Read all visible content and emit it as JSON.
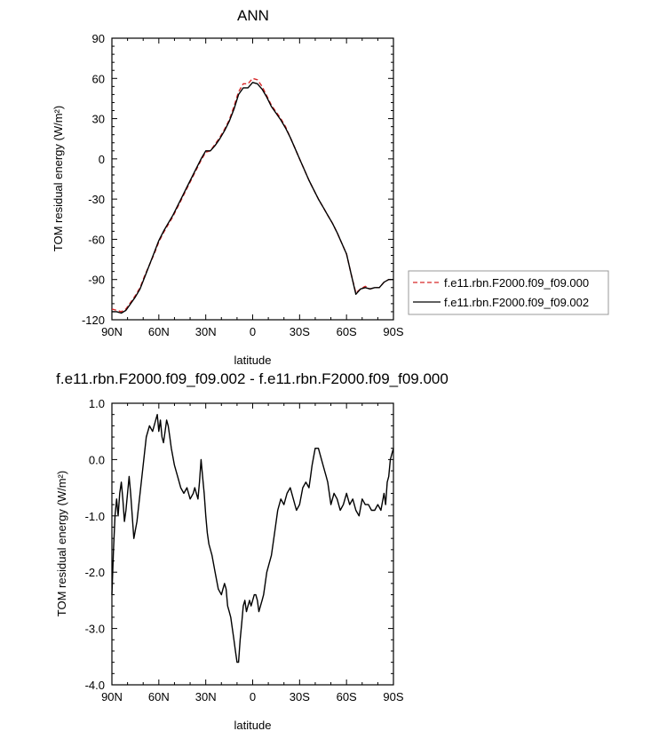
{
  "chart_data": [
    {
      "type": "line",
      "title": "ANN",
      "xlabel": "latitude",
      "ylabel": "TOM residual energy (W/m²)",
      "xlim": [
        90,
        -90
      ],
      "ylim": [
        -120,
        90
      ],
      "xticks": [
        90,
        60,
        30,
        0,
        -30,
        -60,
        -90
      ],
      "xtick_labels": [
        "90N",
        "60N",
        "30N",
        "0",
        "30S",
        "60S",
        "90S"
      ],
      "yticks": [
        90,
        60,
        30,
        0,
        -30,
        -60,
        -90,
        -120
      ],
      "ytick_labels": [
        "90",
        "60",
        "30",
        "0",
        "-30",
        "-60",
        "-90",
        "-120"
      ],
      "legend_position": "right",
      "series": [
        {
          "name": "f.e11.rbn.F2000.f09_f09.000",
          "color": "#d62728",
          "dash": "dashed",
          "x": [
            90,
            87,
            84,
            81,
            78,
            75,
            72,
            69,
            66,
            63,
            60,
            57,
            54,
            51,
            48,
            45,
            42,
            39,
            36,
            33,
            30,
            27,
            24,
            21,
            18,
            15,
            12,
            9,
            6,
            3,
            0,
            -3,
            -6,
            -9,
            -12,
            -15,
            -18,
            -21,
            -24,
            -27,
            -30,
            -33,
            -36,
            -39,
            -42,
            -45,
            -48,
            -51,
            -54,
            -57,
            -60,
            -63,
            -66,
            -69,
            -72,
            -75,
            -78,
            -81,
            -84,
            -87,
            -90
          ],
          "values": [
            -112,
            -113,
            -114,
            -112,
            -107,
            -102,
            -96,
            -87,
            -79,
            -71,
            -62,
            -55,
            -49,
            -43,
            -36,
            -29,
            -22,
            -15,
            -8,
            -1,
            5,
            6,
            11,
            16,
            22,
            29,
            39,
            50,
            56,
            56,
            60,
            59,
            54,
            47,
            40,
            35,
            30,
            24,
            16,
            8,
            0,
            -8,
            -16,
            -23,
            -30,
            -36,
            -42,
            -48,
            -55,
            -63,
            -71,
            -86,
            -100,
            -97,
            -95,
            -97,
            -96,
            -96,
            -92,
            -90,
            -90
          ]
        },
        {
          "name": "f.e11.rbn.F2000.f09_f09.002",
          "color": "#000000",
          "dash": "solid",
          "x": [
            90,
            87,
            84,
            81,
            78,
            75,
            72,
            69,
            66,
            63,
            60,
            57,
            54,
            51,
            48,
            45,
            42,
            39,
            36,
            33,
            30,
            27,
            24,
            21,
            18,
            15,
            12,
            9,
            6,
            3,
            0,
            -3,
            -6,
            -9,
            -12,
            -15,
            -18,
            -21,
            -24,
            -27,
            -30,
            -33,
            -36,
            -39,
            -42,
            -45,
            -48,
            -51,
            -54,
            -57,
            -60,
            -63,
            -66,
            -69,
            -72,
            -75,
            -78,
            -81,
            -84,
            -87,
            -90
          ],
          "values": [
            -114,
            -114,
            -115,
            -113,
            -108,
            -103,
            -97,
            -88,
            -79,
            -70,
            -61,
            -54,
            -48,
            -42,
            -35,
            -28,
            -21,
            -14,
            -7,
            0,
            6,
            6,
            10,
            15,
            21,
            28,
            37,
            48,
            53,
            53,
            57,
            56,
            52,
            46,
            39,
            34,
            29,
            23,
            16,
            8,
            0,
            -8,
            -16,
            -23,
            -30,
            -36,
            -42,
            -48,
            -55,
            -63,
            -71,
            -86,
            -101,
            -97,
            -96,
            -97,
            -96,
            -96,
            -92,
            -90,
            -90
          ]
        }
      ]
    },
    {
      "type": "line",
      "title": "f.e11.rbn.F2000.f09_f09.002 - f.e11.rbn.F2000.f09_f09.000",
      "xlabel": "latitude",
      "ylabel": "TOM residual energy (W/m²)",
      "xlim": [
        90,
        -90
      ],
      "ylim": [
        -4.0,
        1.0
      ],
      "xticks": [
        90,
        60,
        30,
        0,
        -30,
        -60,
        -90
      ],
      "xtick_labels": [
        "90N",
        "60N",
        "30N",
        "0",
        "30S",
        "60S",
        "90S"
      ],
      "yticks": [
        1.0,
        0.0,
        -1.0,
        -2.0,
        -3.0,
        -4.0
      ],
      "ytick_labels": [
        "1.0",
        "0.0",
        "-1.0",
        "-2.0",
        "-3.0",
        "-4.0"
      ],
      "series": [
        {
          "color": "#000000",
          "dash": "solid",
          "x": [
            90,
            89,
            88,
            87,
            86,
            85,
            84,
            83,
            82,
            81,
            80,
            79,
            78,
            76,
            74,
            72,
            70,
            68,
            66,
            64,
            62,
            61,
            60,
            59,
            58,
            57,
            56,
            55,
            54,
            53,
            52,
            50,
            48,
            46,
            44,
            42,
            40,
            38,
            37,
            36,
            35,
            34,
            33,
            32,
            31,
            30,
            29,
            28,
            26,
            24,
            22,
            20,
            19,
            18,
            17,
            16,
            15,
            14,
            13,
            12,
            11,
            10,
            9,
            8,
            7,
            6,
            5,
            4,
            3,
            2,
            1,
            0,
            -1,
            -2,
            -3,
            -4,
            -5,
            -6,
            -7,
            -8,
            -9,
            -10,
            -12,
            -14,
            -16,
            -18,
            -20,
            -22,
            -24,
            -26,
            -28,
            -30,
            -32,
            -34,
            -36,
            -37,
            -38,
            -40,
            -42,
            -44,
            -46,
            -47,
            -48,
            -49,
            -50,
            -52,
            -54,
            -56,
            -58,
            -60,
            -62,
            -64,
            -66,
            -68,
            -70,
            -72,
            -74,
            -76,
            -78,
            -80,
            -82,
            -84,
            -85,
            -86,
            -87,
            -88,
            -89,
            -90
          ],
          "values": [
            -2.4,
            -1.6,
            -1.0,
            -0.7,
            -1.0,
            -0.6,
            -0.4,
            -0.7,
            -1.1,
            -0.9,
            -0.6,
            -0.3,
            -0.6,
            -1.4,
            -1.1,
            -0.6,
            -0.1,
            0.4,
            0.6,
            0.5,
            0.7,
            0.8,
            0.5,
            0.7,
            0.4,
            0.3,
            0.5,
            0.7,
            0.6,
            0.4,
            0.2,
            -0.1,
            -0.3,
            -0.5,
            -0.6,
            -0.5,
            -0.7,
            -0.6,
            -0.5,
            -0.6,
            -0.7,
            -0.4,
            0.0,
            -0.3,
            -0.6,
            -1.0,
            -1.3,
            -1.5,
            -1.7,
            -2.0,
            -2.3,
            -2.4,
            -2.3,
            -2.2,
            -2.3,
            -2.6,
            -2.7,
            -2.8,
            -3.0,
            -3.2,
            -3.4,
            -3.6,
            -3.6,
            -3.2,
            -2.9,
            -2.6,
            -2.5,
            -2.7,
            -2.6,
            -2.5,
            -2.6,
            -2.5,
            -2.4,
            -2.4,
            -2.5,
            -2.7,
            -2.6,
            -2.5,
            -2.4,
            -2.2,
            -2.0,
            -1.9,
            -1.7,
            -1.3,
            -0.9,
            -0.7,
            -0.8,
            -0.6,
            -0.5,
            -0.7,
            -0.9,
            -0.8,
            -0.5,
            -0.4,
            -0.5,
            -0.3,
            -0.1,
            0.2,
            0.2,
            0.0,
            -0.2,
            -0.3,
            -0.4,
            -0.6,
            -0.8,
            -0.6,
            -0.7,
            -0.9,
            -0.8,
            -0.6,
            -0.8,
            -0.7,
            -0.9,
            -1.0,
            -0.7,
            -0.8,
            -0.8,
            -0.9,
            -0.9,
            -0.8,
            -0.9,
            -0.6,
            -0.8,
            -0.4,
            -0.3,
            0.0,
            0.1,
            0.2
          ]
        }
      ]
    }
  ]
}
